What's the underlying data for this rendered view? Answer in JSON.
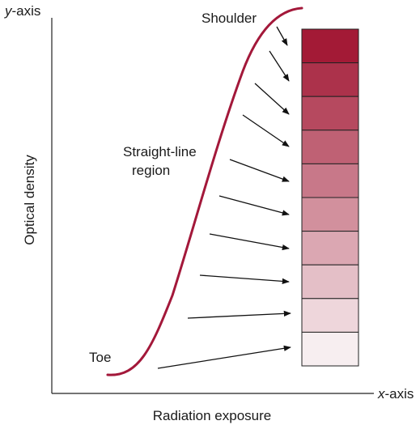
{
  "labels": {
    "y_axis_prefix": "y",
    "y_axis_suffix": "-axis",
    "x_axis_prefix": "x",
    "x_axis_suffix": "-axis",
    "y_title": "Optical density",
    "x_title": "Radiation exposure",
    "shoulder": "Shoulder",
    "straight_line_1": "Straight-line",
    "straight_line_2": "region",
    "toe": "Toe"
  },
  "colors": {
    "curve": "#a3183a",
    "axis": "#222222",
    "arrow": "#111111",
    "step_dark": "#a31a36",
    "step_light": "#f7eef0"
  },
  "step_wedge": {
    "steps": 10
  }
}
